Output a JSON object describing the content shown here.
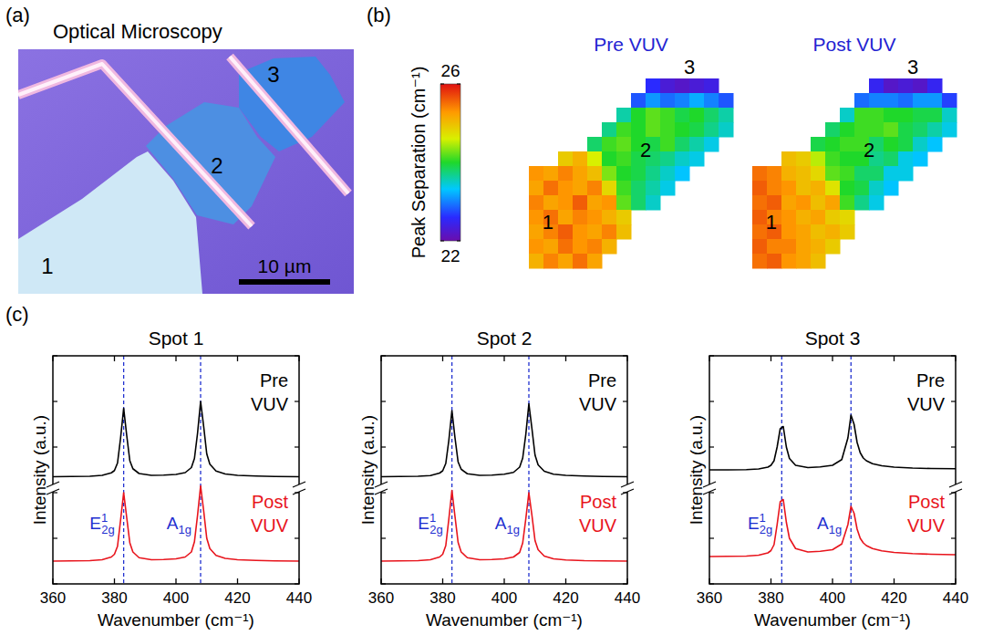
{
  "chart_data": [
    {
      "type": "image",
      "panel": "(a)",
      "title": "Optical Microscopy",
      "region_labels": [
        "1",
        "2",
        "3"
      ],
      "scale_bar": "10 µm"
    },
    {
      "type": "heatmap",
      "panel": "(b)",
      "colorbar": {
        "label": "Peak Separation (cm⁻¹)",
        "range": [
          22,
          26
        ],
        "ticks": [
          22,
          26
        ]
      },
      "maps": [
        {
          "title": "Pre VUV",
          "region_labels": [
            "1",
            "2",
            "3"
          ],
          "cells": [
            [
              null,
              null,
              null,
              null,
              null,
              null,
              null,
              null,
              22.6,
              22.3,
              22.2,
              22.3,
              22.4,
              null
            ],
            [
              null,
              null,
              null,
              null,
              null,
              null,
              null,
              22.8,
              23.1,
              22.9,
              23.0,
              23.2,
              23.0,
              22.8
            ],
            [
              null,
              null,
              null,
              null,
              null,
              null,
              23.6,
              24.0,
              24.2,
              24.1,
              23.9,
              24.0,
              23.8,
              23.6
            ],
            [
              null,
              null,
              null,
              null,
              null,
              23.7,
              24.1,
              24.0,
              24.2,
              24.1,
              24.0,
              23.9,
              23.7,
              23.5
            ],
            [
              null,
              null,
              null,
              null,
              23.8,
              24.1,
              24.2,
              24.0,
              23.9,
              24.1,
              23.8,
              23.6,
              23.4,
              null
            ],
            [
              null,
              null,
              24.9,
              25.1,
              24.6,
              24.0,
              24.1,
              23.9,
              23.8,
              23.7,
              23.5,
              23.4,
              null,
              null
            ],
            [
              25.3,
              25.2,
              25.4,
              25.2,
              25.0,
              24.3,
              24.0,
              23.9,
              23.7,
              23.5,
              23.3,
              null,
              null,
              null
            ],
            [
              25.2,
              25.5,
              25.3,
              25.2,
              25.4,
              24.8,
              24.1,
              23.8,
              23.6,
              23.4,
              null,
              null,
              null,
              null
            ],
            [
              25.4,
              25.2,
              25.3,
              25.6,
              25.2,
              25.3,
              24.2,
              23.8,
              23.5,
              null,
              null,
              null,
              null,
              null
            ],
            [
              25.3,
              25.5,
              25.2,
              25.4,
              25.3,
              25.1,
              24.9,
              null,
              null,
              null,
              null,
              null,
              null,
              null
            ],
            [
              25.2,
              25.4,
              25.6,
              25.3,
              25.2,
              25.4,
              25.0,
              null,
              null,
              null,
              null,
              null,
              null,
              null
            ],
            [
              25.3,
              25.2,
              25.5,
              25.3,
              25.4,
              25.1,
              null,
              null,
              null,
              null,
              null,
              null,
              null,
              null
            ],
            [
              25.1,
              25.4,
              25.2,
              25.5,
              25.2,
              null,
              null,
              null,
              null,
              null,
              null,
              null,
              null,
              null
            ]
          ]
        },
        {
          "title": "Post VUV",
          "region_labels": [
            "1",
            "2",
            "3"
          ],
          "cells": [
            [
              null,
              null,
              null,
              null,
              null,
              null,
              null,
              null,
              22.5,
              22.2,
              22.3,
              22.2,
              22.5,
              null
            ],
            [
              null,
              null,
              null,
              null,
              null,
              null,
              null,
              22.9,
              23.0,
              23.0,
              22.9,
              23.1,
              23.1,
              22.7
            ],
            [
              null,
              null,
              null,
              null,
              null,
              null,
              23.5,
              24.1,
              24.1,
              24.0,
              24.0,
              23.9,
              23.9,
              23.5
            ],
            [
              null,
              null,
              null,
              null,
              null,
              23.8,
              24.0,
              24.1,
              24.1,
              24.2,
              23.9,
              23.8,
              23.6,
              23.4
            ],
            [
              null,
              null,
              null,
              null,
              23.9,
              24.0,
              24.1,
              24.1,
              23.8,
              24.0,
              23.9,
              23.5,
              23.3,
              null
            ],
            [
              null,
              null,
              25.0,
              24.9,
              24.5,
              24.1,
              24.0,
              24.0,
              23.7,
              23.8,
              23.4,
              23.3,
              null,
              null
            ],
            [
              25.5,
              25.4,
              25.1,
              25.0,
              24.8,
              24.2,
              24.1,
              23.8,
              23.8,
              23.4,
              23.4,
              null,
              null,
              null
            ],
            [
              25.6,
              25.4,
              25.3,
              25.0,
              25.1,
              24.7,
              24.0,
              23.9,
              23.5,
              23.3,
              null,
              null,
              null,
              null
            ],
            [
              25.5,
              25.6,
              25.2,
              25.3,
              25.0,
              25.2,
              24.1,
              23.7,
              23.4,
              null,
              null,
              null,
              null,
              null
            ],
            [
              25.6,
              25.4,
              25.3,
              25.1,
              25.2,
              24.9,
              24.8,
              null,
              null,
              null,
              null,
              null,
              null,
              null
            ],
            [
              25.5,
              25.6,
              25.3,
              25.2,
              25.0,
              25.1,
              24.9,
              null,
              null,
              null,
              null,
              null,
              null,
              null
            ],
            [
              25.6,
              25.4,
              25.4,
              25.2,
              25.1,
              24.9,
              null,
              null,
              null,
              null,
              null,
              null,
              null,
              null
            ],
            [
              25.5,
              25.6,
              25.3,
              25.2,
              25.0,
              null,
              null,
              null,
              null,
              null,
              null,
              null,
              null,
              null
            ]
          ]
        }
      ]
    },
    {
      "type": "line",
      "panel": "(c)",
      "title": "Spot 1",
      "xlabel": "Wavenumber (cm⁻¹)",
      "ylabel": "Intensity (a.u.)",
      "x": [
        360,
        366,
        372,
        376,
        379,
        380,
        381,
        382,
        383,
        384,
        385,
        386,
        388,
        392,
        396,
        400,
        403,
        405,
        406,
        407,
        408,
        409,
        410,
        411,
        413,
        416,
        420,
        426,
        432,
        440
      ],
      "xlim": [
        360,
        440
      ],
      "xticks": [
        360,
        380,
        400,
        420,
        440
      ],
      "ylim": [
        0,
        1
      ],
      "yticks": [
        0,
        0.2,
        0.4,
        0.6,
        0.8,
        1
      ],
      "tick_labels": "x",
      "series": [
        {
          "name": "Pre VUV",
          "color": "#000000",
          "values": [
            0.47,
            0.471,
            0.472,
            0.476,
            0.487,
            0.497,
            0.53,
            0.64,
            0.77,
            0.65,
            0.54,
            0.505,
            0.484,
            0.476,
            0.477,
            0.48,
            0.488,
            0.51,
            0.55,
            0.66,
            0.8,
            0.69,
            0.57,
            0.525,
            0.495,
            0.482,
            0.476,
            0.473,
            0.471,
            0.47
          ]
        },
        {
          "name": "Post VUV",
          "color": "#e8141c",
          "values": [
            0.1,
            0.101,
            0.102,
            0.106,
            0.118,
            0.13,
            0.165,
            0.28,
            0.4,
            0.29,
            0.18,
            0.14,
            0.115,
            0.106,
            0.107,
            0.11,
            0.118,
            0.14,
            0.185,
            0.3,
            0.43,
            0.32,
            0.2,
            0.155,
            0.125,
            0.112,
            0.106,
            0.103,
            0.101,
            0.1
          ]
        }
      ],
      "peak_lines": [
        383,
        408
      ],
      "peak_labels": [
        {
          "base": "E",
          "sup": "1",
          "sub": "2g"
        },
        {
          "base": "A",
          "sub": "1g"
        }
      ]
    },
    {
      "type": "line",
      "title": "Spot 2",
      "xlabel": "Wavenumber (cm⁻¹)",
      "ylabel": "Intensity (a.u.)",
      "x": [
        360,
        366,
        372,
        376,
        379,
        380,
        381,
        382,
        383,
        384,
        385,
        386,
        388,
        392,
        396,
        400,
        403,
        405,
        406,
        407,
        408,
        409,
        410,
        411,
        413,
        416,
        420,
        426,
        432,
        440
      ],
      "xlim": [
        360,
        440
      ],
      "xticks": [
        360,
        380,
        400,
        420,
        440
      ],
      "ylim": [
        0,
        1
      ],
      "yticks": [
        0,
        0.2,
        0.4,
        0.6,
        0.8,
        1
      ],
      "tick_labels": "x",
      "series": [
        {
          "name": "Pre VUV",
          "color": "#000000",
          "values": [
            0.47,
            0.471,
            0.472,
            0.475,
            0.486,
            0.496,
            0.528,
            0.63,
            0.76,
            0.64,
            0.535,
            0.503,
            0.483,
            0.476,
            0.477,
            0.481,
            0.489,
            0.512,
            0.552,
            0.655,
            0.79,
            0.68,
            0.565,
            0.522,
            0.494,
            0.481,
            0.476,
            0.473,
            0.471,
            0.47
          ]
        },
        {
          "name": "Post VUV",
          "color": "#e8141c",
          "values": [
            0.1,
            0.101,
            0.102,
            0.106,
            0.118,
            0.13,
            0.168,
            0.285,
            0.41,
            0.295,
            0.182,
            0.14,
            0.115,
            0.106,
            0.107,
            0.11,
            0.118,
            0.138,
            0.18,
            0.285,
            0.4,
            0.3,
            0.19,
            0.15,
            0.122,
            0.11,
            0.105,
            0.102,
            0.101,
            0.1
          ]
        }
      ],
      "peak_lines": [
        383,
        408
      ],
      "peak_labels": [
        {
          "base": "E",
          "sup": "1",
          "sub": "2g"
        },
        {
          "base": "A",
          "sub": "1g"
        }
      ]
    },
    {
      "type": "line",
      "title": "Spot 3",
      "xlabel": "Wavenumber (cm⁻¹)",
      "ylabel": "Intensity (a.u.)",
      "x": [
        360,
        366,
        372,
        376,
        379,
        380,
        381,
        382,
        383,
        384,
        385,
        386,
        388,
        392,
        396,
        400,
        403,
        405,
        406,
        407,
        408,
        409,
        410,
        411,
        413,
        416,
        420,
        426,
        432,
        440
      ],
      "xlim": [
        360,
        440
      ],
      "xticks": [
        360,
        380,
        400,
        420,
        440
      ],
      "ylim": [
        0,
        1
      ],
      "yticks": [
        0,
        0.2,
        0.4,
        0.6,
        0.8,
        1
      ],
      "tick_labels": "x",
      "series": [
        {
          "name": "Pre VUV",
          "color": "#000000",
          "values": [
            0.5,
            0.5,
            0.501,
            0.504,
            0.512,
            0.52,
            0.54,
            0.6,
            0.68,
            0.69,
            0.6,
            0.55,
            0.52,
            0.51,
            0.513,
            0.52,
            0.545,
            0.64,
            0.74,
            0.7,
            0.62,
            0.575,
            0.552,
            0.54,
            0.527,
            0.518,
            0.512,
            0.508,
            0.506,
            0.505
          ]
        },
        {
          "name": "Post VUV",
          "color": "#e8141c",
          "values": [
            0.12,
            0.121,
            0.122,
            0.126,
            0.136,
            0.146,
            0.172,
            0.26,
            0.36,
            0.37,
            0.27,
            0.2,
            0.155,
            0.14,
            0.143,
            0.15,
            0.175,
            0.26,
            0.34,
            0.31,
            0.24,
            0.2,
            0.18,
            0.168,
            0.155,
            0.145,
            0.138,
            0.133,
            0.13,
            0.128
          ]
        }
      ],
      "peak_lines": [
        383.5,
        406
      ],
      "peak_labels": [
        {
          "base": "E",
          "sup": "1",
          "sub": "2g"
        },
        {
          "base": "A",
          "sub": "1g"
        }
      ]
    }
  ]
}
